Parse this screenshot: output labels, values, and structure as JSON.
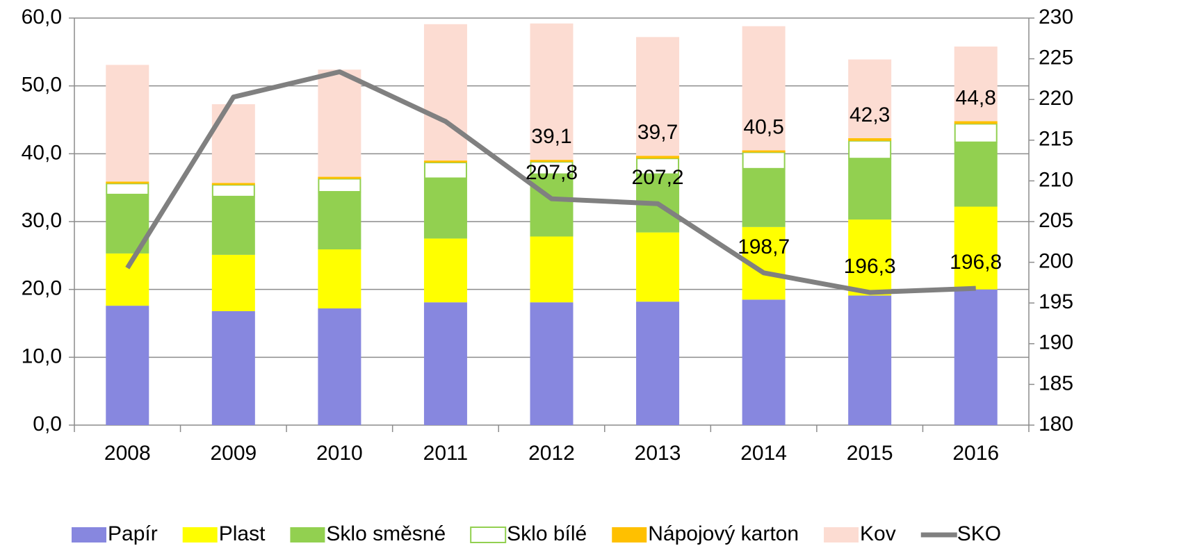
{
  "chart_data": {
    "type": "bar",
    "stacked": true,
    "categories": [
      "2008",
      "2009",
      "2010",
      "2011",
      "2012",
      "2013",
      "2014",
      "2015",
      "2016"
    ],
    "series": [
      {
        "name": "Papír",
        "color": "#8787df",
        "values": [
          17.6,
          16.8,
          17.2,
          18.1,
          18.1,
          18.2,
          18.5,
          19.1,
          20.0
        ]
      },
      {
        "name": "Plast",
        "color": "#ffff00",
        "values": [
          7.7,
          8.3,
          8.7,
          9.4,
          9.7,
          10.2,
          10.7,
          11.2,
          12.2
        ]
      },
      {
        "name": "Sklo směsné",
        "color": "#92d050",
        "values": [
          8.7,
          8.6,
          8.5,
          8.9,
          9.2,
          8.6,
          8.6,
          9.0,
          9.5
        ]
      },
      {
        "name": "Sklo bílé",
        "color": "#ffffff",
        "border": "#92d050",
        "values": [
          1.6,
          1.7,
          1.9,
          2.3,
          1.8,
          2.3,
          2.4,
          2.6,
          2.7
        ]
      },
      {
        "name": "Nápojový karton",
        "color": "#ffc000",
        "values": [
          0.3,
          0.3,
          0.3,
          0.3,
          0.3,
          0.4,
          0.3,
          0.4,
          0.4
        ]
      },
      {
        "name": "Kov",
        "color": "#fcdcd2",
        "values": [
          17.2,
          11.6,
          15.8,
          20.1,
          20.1,
          17.5,
          18.3,
          11.6,
          11.0
        ]
      },
      {
        "name": "SKO",
        "color": "#808080",
        "type": "line",
        "axis": "y2",
        "values": [
          199.3,
          220.3,
          223.4,
          217.3,
          207.8,
          207.2,
          198.7,
          196.3,
          196.8
        ],
        "value_labels": [
          null,
          null,
          null,
          null,
          "207,8",
          "207,2",
          "198,7",
          "196,3",
          "196,8"
        ]
      }
    ],
    "totals": {
      "values": [
        null,
        null,
        null,
        null,
        39.1,
        39.7,
        40.5,
        42.3,
        44.8
      ],
      "value_labels": [
        null,
        null,
        null,
        null,
        "39,1",
        "39,7",
        "40,5",
        "42,3",
        "44,8"
      ]
    },
    "ylim": [
      0,
      60
    ],
    "yticks": [
      {
        "value": 0,
        "label": "0,0"
      },
      {
        "value": 10,
        "label": "10,0"
      },
      {
        "value": 20,
        "label": "20,0"
      },
      {
        "value": 30,
        "label": "30,0"
      },
      {
        "value": 40,
        "label": "40,0"
      },
      {
        "value": 50,
        "label": "50,0"
      },
      {
        "value": 60,
        "label": "60,0"
      }
    ],
    "y2lim": [
      180,
      230
    ],
    "y2ticks": [
      180,
      185,
      190,
      195,
      200,
      205,
      210,
      215,
      220,
      225,
      230
    ],
    "grid": true,
    "legend": "bottom"
  }
}
